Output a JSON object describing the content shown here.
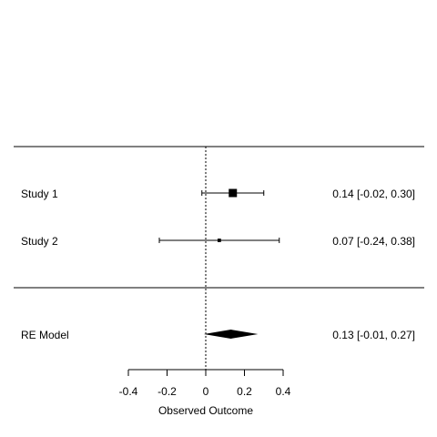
{
  "chart_data": {
    "type": "forest",
    "xlabel": "Observed Outcome",
    "xlim": [
      -0.4,
      0.4
    ],
    "xticks": [
      -0.4,
      -0.2,
      0,
      0.2,
      0.4
    ],
    "xtick_labels": [
      "-0.4",
      "-0.2",
      "0",
      "0.2",
      "0.4"
    ],
    "reference_line": 0,
    "studies": [
      {
        "label": "Study 1",
        "estimate": 0.14,
        "ci_lower": -0.02,
        "ci_upper": 0.3,
        "text": "0.14 [-0.02, 0.30]",
        "weight": 0.85
      },
      {
        "label": "Study 2",
        "estimate": 0.07,
        "ci_lower": -0.24,
        "ci_upper": 0.38,
        "text": "0.07 [-0.24, 0.38]",
        "weight": 0.15
      }
    ],
    "summary": {
      "label": "RE Model",
      "estimate": 0.13,
      "ci_lower": -0.01,
      "ci_upper": 0.27,
      "text": "0.13 [-0.01, 0.27]"
    }
  }
}
